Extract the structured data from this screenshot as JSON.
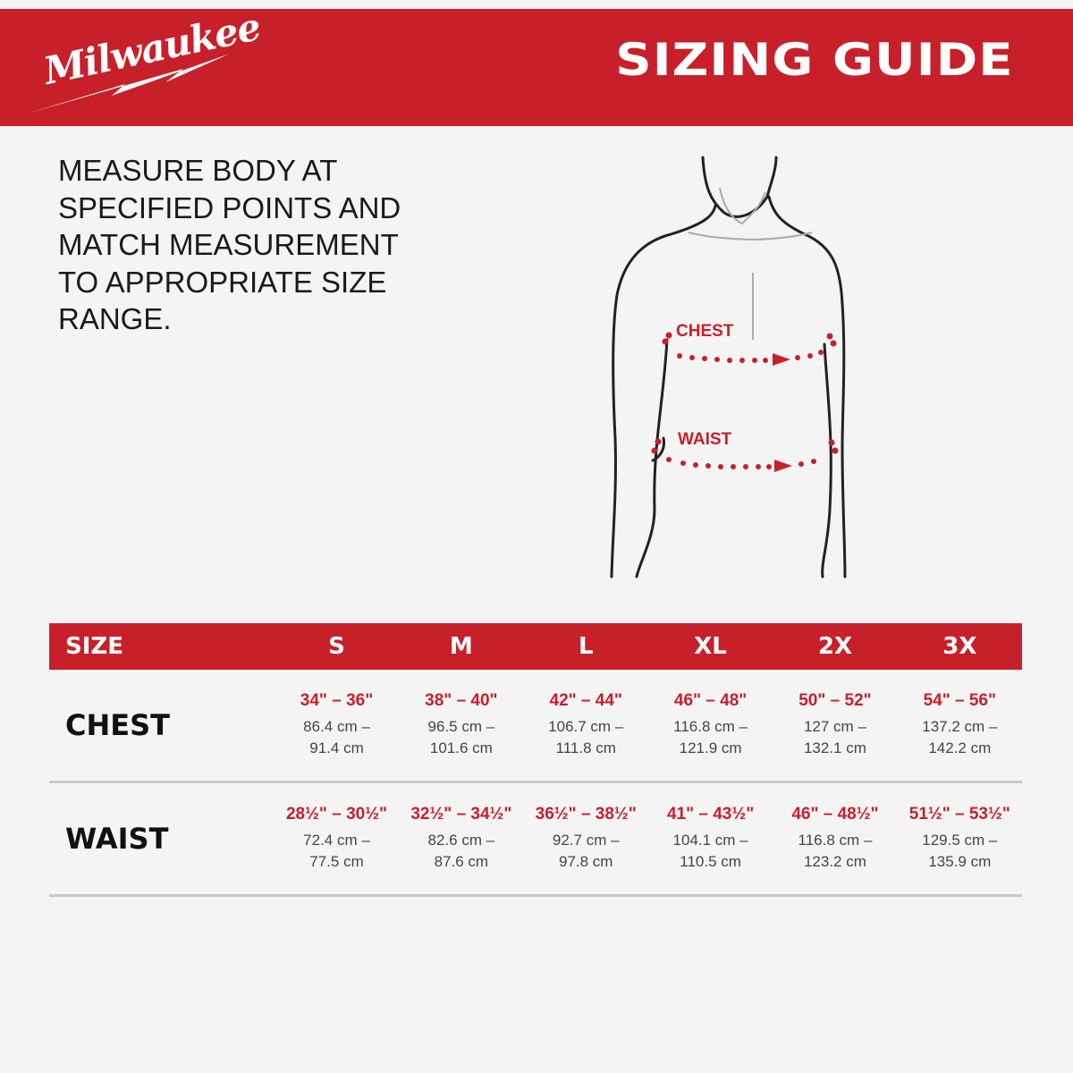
{
  "header": {
    "brand": "Milwaukee",
    "title": "SIZING GUIDE"
  },
  "instructions": "MEASURE BODY AT SPECIFIED POINTS AND MATCH MEASUREMENT TO APPROPRIATE SIZE RANGE.",
  "figure": {
    "chest_label": "CHEST",
    "waist_label": "WAIST"
  },
  "table": {
    "header_label": "SIZE",
    "sizes": [
      "S",
      "M",
      "L",
      "XL",
      "2X",
      "3X"
    ],
    "rows": [
      {
        "label": "CHEST",
        "values": [
          {
            "in": "34\" – 36\"",
            "cm": "86.4 cm – 91.4 cm"
          },
          {
            "in": "38\" – 40\"",
            "cm": "96.5 cm – 101.6 cm"
          },
          {
            "in": "42\" – 44\"",
            "cm": "106.7 cm – 111.8 cm"
          },
          {
            "in": "46\" – 48\"",
            "cm": "116.8 cm – 121.9 cm"
          },
          {
            "in": "50\" – 52\"",
            "cm": "127 cm – 132.1 cm"
          },
          {
            "in": "54\" – 56\"",
            "cm": "137.2 cm – 142.2 cm"
          }
        ]
      },
      {
        "label": "WAIST",
        "values": [
          {
            "in": "28½\" – 30½\"",
            "cm": "72.4 cm – 77.5 cm"
          },
          {
            "in": "32½\" – 34½\"",
            "cm": "82.6 cm – 87.6 cm"
          },
          {
            "in": "36½\" – 38½\"",
            "cm": "92.7 cm – 97.8 cm"
          },
          {
            "in": "41\" – 43½\"",
            "cm": "104.1 cm – 110.5 cm"
          },
          {
            "in": "46\" – 48½\"",
            "cm": "116.8 cm – 123.2 cm"
          },
          {
            "in": "51½\" – 53½\"",
            "cm": "129.5 cm – 135.9 cm"
          }
        ]
      }
    ]
  },
  "colors": {
    "brand_red": "#c8202a",
    "background": "#f4f4f4"
  }
}
